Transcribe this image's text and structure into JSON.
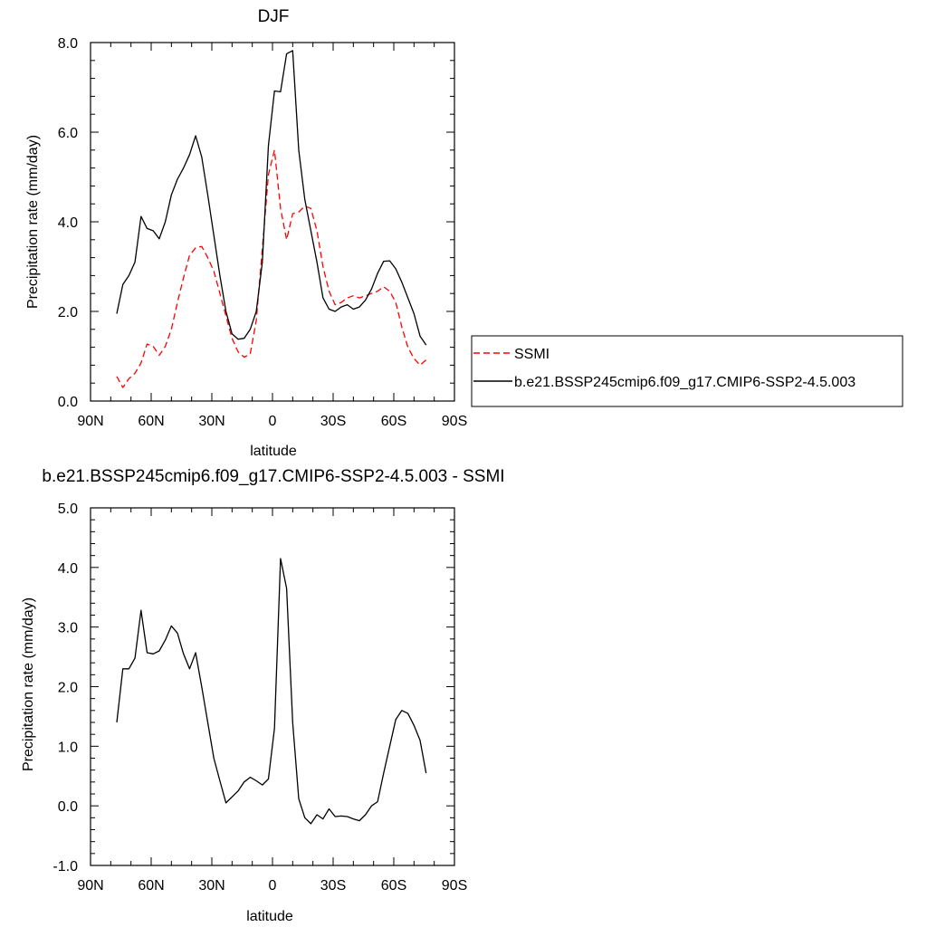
{
  "chart_data": [
    {
      "type": "line",
      "title": "DJF",
      "xlabel": "latitude",
      "ylabel": "Precipitation rate (mm/day)",
      "xlim": [
        90,
        -90
      ],
      "ylim": [
        0,
        8
      ],
      "x_ticks": [
        90,
        60,
        30,
        0,
        -30,
        -60,
        -90
      ],
      "x_tick_labels": [
        "90N",
        "60N",
        "30N",
        "0",
        "30S",
        "60S",
        "90S"
      ],
      "y_ticks": [
        0,
        2,
        4,
        6,
        8
      ],
      "y_tick_labels": [
        "0.0",
        "2.0",
        "4.0",
        "6.0",
        "8.0"
      ],
      "grid": false,
      "legend_position": "right",
      "series": [
        {
          "name": "SSMI",
          "color": "#ff0000",
          "dash": "dashed",
          "x": [
            77,
            74,
            71,
            68,
            65,
            62,
            59,
            56,
            53,
            50,
            47,
            44,
            41,
            38,
            35,
            32,
            29,
            26,
            23,
            20,
            17,
            14,
            11,
            8,
            5,
            2,
            -1,
            -4,
            -7,
            -10,
            -13,
            -16,
            -19,
            -22,
            -25,
            -28,
            -31,
            -34,
            -37,
            -40,
            -43,
            -46,
            -49,
            -52,
            -55,
            -58,
            -61,
            -64,
            -67,
            -70,
            -73,
            -76
          ],
          "y": [
            0.55,
            0.3,
            0.5,
            0.62,
            0.85,
            1.27,
            1.22,
            1.02,
            1.22,
            1.6,
            2.2,
            2.75,
            3.25,
            3.42,
            3.45,
            3.2,
            2.9,
            2.4,
            1.9,
            1.4,
            1.1,
            0.98,
            1.05,
            1.8,
            3.4,
            5.05,
            5.6,
            4.3,
            3.6,
            4.18,
            4.22,
            4.35,
            4.3,
            3.8,
            3.0,
            2.45,
            2.15,
            2.2,
            2.3,
            2.35,
            2.3,
            2.35,
            2.4,
            2.45,
            2.55,
            2.45,
            2.2,
            1.65,
            1.2,
            0.95,
            0.8,
            0.92
          ]
        },
        {
          "name": "b.e21.BSSP245cmip6.f09_g17.CMIP6-SSP2-4.5.003",
          "color": "#000000",
          "dash": "solid",
          "x": [
            77,
            74,
            71,
            68,
            65,
            62,
            59,
            56,
            53,
            50,
            47,
            44,
            41,
            38,
            35,
            32,
            29,
            26,
            23,
            20,
            17,
            14,
            11,
            8,
            5,
            2,
            -1,
            -4,
            -7,
            -10,
            -13,
            -16,
            -19,
            -22,
            -25,
            -28,
            -31,
            -34,
            -37,
            -40,
            -43,
            -46,
            -49,
            -52,
            -55,
            -58,
            -61,
            -64,
            -67,
            -70,
            -73,
            -76
          ],
          "y": [
            1.95,
            2.6,
            2.8,
            3.1,
            4.12,
            3.85,
            3.8,
            3.62,
            4.0,
            4.6,
            4.95,
            5.2,
            5.5,
            5.92,
            5.45,
            4.6,
            3.7,
            2.8,
            2.0,
            1.5,
            1.38,
            1.4,
            1.6,
            2.0,
            3.1,
            5.7,
            6.92,
            6.9,
            7.75,
            7.82,
            5.6,
            4.5,
            3.8,
            3.1,
            2.3,
            2.05,
            2.0,
            2.1,
            2.15,
            2.05,
            2.1,
            2.25,
            2.5,
            2.85,
            3.12,
            3.13,
            2.95,
            2.65,
            2.3,
            1.95,
            1.45,
            1.25
          ]
        }
      ]
    },
    {
      "type": "line",
      "title": "b.e21.BSSP245cmip6.f09_g17.CMIP6-SSP2-4.5.003 - SSMI",
      "xlabel": "latitude",
      "ylabel": "Precipitation rate (mm/day)",
      "xlim": [
        90,
        -90
      ],
      "ylim": [
        -1,
        5
      ],
      "x_ticks": [
        90,
        60,
        30,
        0,
        -30,
        -60,
        -90
      ],
      "x_tick_labels": [
        "90N",
        "60N",
        "30N",
        "0",
        "30S",
        "60S",
        "90S"
      ],
      "y_ticks": [
        -1,
        0,
        1,
        2,
        3,
        4,
        5
      ],
      "y_tick_labels": [
        "-1.0",
        "0.0",
        "1.0",
        "2.0",
        "3.0",
        "4.0",
        "5.0"
      ],
      "grid": false,
      "series": [
        {
          "color": "#000000",
          "dash": "solid",
          "x": [
            77,
            74,
            71,
            68,
            65,
            62,
            59,
            56,
            53,
            50,
            47,
            44,
            41,
            38,
            35,
            32,
            29,
            26,
            23,
            20,
            17,
            14,
            11,
            8,
            5,
            2,
            -1,
            -4,
            -7,
            -10,
            -13,
            -16,
            -19,
            -22,
            -25,
            -28,
            -31,
            -34,
            -37,
            -40,
            -43,
            -46,
            -49,
            -52,
            -55,
            -58,
            -61,
            -64,
            -67,
            -70,
            -73,
            -76
          ],
          "y": [
            1.4,
            2.3,
            2.3,
            2.48,
            3.28,
            2.57,
            2.55,
            2.6,
            2.78,
            3.02,
            2.9,
            2.55,
            2.3,
            2.57,
            2.0,
            1.4,
            0.8,
            0.42,
            0.05,
            0.15,
            0.25,
            0.4,
            0.48,
            0.42,
            0.35,
            0.45,
            1.3,
            4.15,
            3.65,
            1.4,
            0.12,
            -0.2,
            -0.3,
            -0.15,
            -0.22,
            -0.05,
            -0.18,
            -0.17,
            -0.18,
            -0.22,
            -0.25,
            -0.15,
            0.0,
            0.07,
            0.55,
            1.0,
            1.45,
            1.6,
            1.55,
            1.35,
            1.1,
            0.55
          ]
        }
      ]
    }
  ]
}
